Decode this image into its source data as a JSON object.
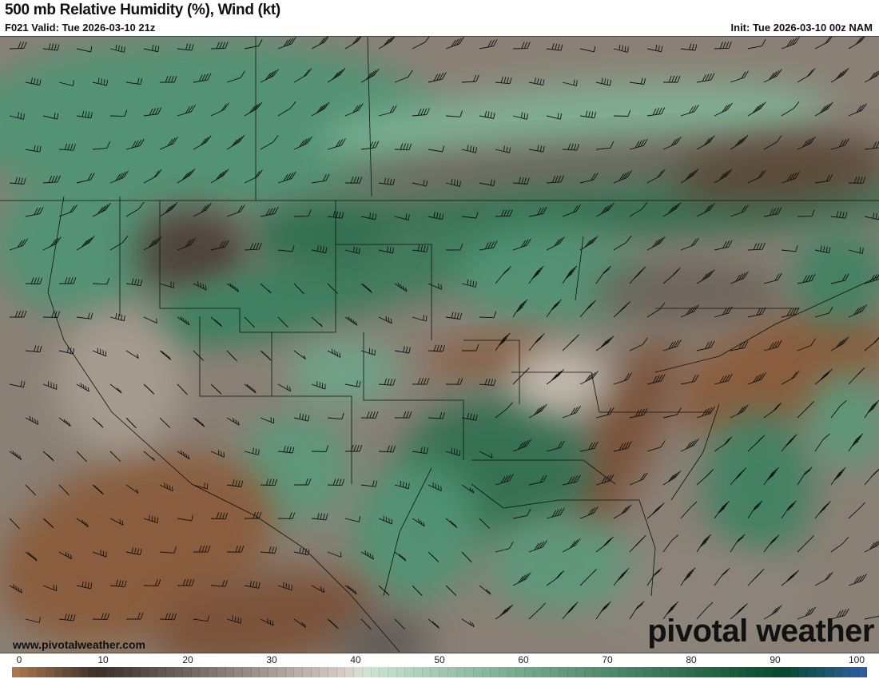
{
  "header": {
    "title": "500 mb Relative Humidity (%), Wind (kt)",
    "valid": "F021 Valid: Tue 2026-03-10 21z",
    "init": "Init: Tue 2026-03-10 00z NAM"
  },
  "footer": {
    "website": "www.pivotalweather.com",
    "logo": "pivotal weather"
  },
  "colorbar": {
    "ticks": [
      "0",
      "10",
      "20",
      "30",
      "40",
      "50",
      "60",
      "70",
      "80",
      "90",
      "100"
    ],
    "stops": [
      {
        "value": 0,
        "color": "#b07a52"
      },
      {
        "value": 10,
        "color": "#3a3028"
      },
      {
        "value": 20,
        "color": "#6c645a"
      },
      {
        "value": 30,
        "color": "#a39a90"
      },
      {
        "value": 40,
        "color": "#dcd4cc"
      },
      {
        "value": 41,
        "color": "#cfe6d2"
      },
      {
        "value": 60,
        "color": "#72a98a"
      },
      {
        "value": 80,
        "color": "#2c6a4a"
      },
      {
        "value": 90,
        "color": "#064a2c"
      },
      {
        "value": 100,
        "color": "#2f5fa6"
      }
    ]
  }
}
